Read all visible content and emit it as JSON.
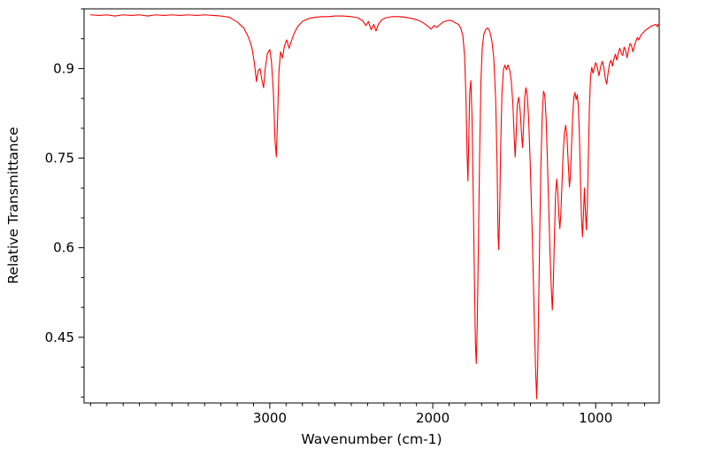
{
  "figure": {
    "background": "#ffffff"
  },
  "chart_data": {
    "type": "line",
    "title": "",
    "xlabel": "Wavenumber (cm-1)",
    "ylabel": "Relative Transmittance",
    "x_axis_reversed": true,
    "xlim": [
      4140,
      610
    ],
    "ylim": [
      0.34,
      1.0
    ],
    "x_ticks": [
      3000,
      2000,
      1000
    ],
    "x_tick_labels": [
      "3000",
      "2000",
      "1000"
    ],
    "x_minor_step": 100,
    "y_ticks": [
      0.45,
      0.6,
      0.75,
      0.9
    ],
    "y_tick_labels": [
      "0.45",
      "0.6",
      "0.75",
      "0.9"
    ],
    "y_minor_step": 0.05,
    "grid": false,
    "legend": null,
    "line_color": "#ff0000",
    "series": [
      {
        "color": "#ff0000",
        "points": [
          [
            4100,
            0.99
          ],
          [
            4050,
            0.989
          ],
          [
            4000,
            0.99
          ],
          [
            3950,
            0.988
          ],
          [
            3900,
            0.99
          ],
          [
            3850,
            0.989
          ],
          [
            3800,
            0.99
          ],
          [
            3750,
            0.988
          ],
          [
            3700,
            0.99
          ],
          [
            3650,
            0.989
          ],
          [
            3600,
            0.99
          ],
          [
            3550,
            0.989
          ],
          [
            3500,
            0.99
          ],
          [
            3450,
            0.989
          ],
          [
            3400,
            0.99
          ],
          [
            3350,
            0.989
          ],
          [
            3300,
            0.988
          ],
          [
            3250,
            0.986
          ],
          [
            3200,
            0.978
          ],
          [
            3160,
            0.968
          ],
          [
            3130,
            0.952
          ],
          [
            3110,
            0.935
          ],
          [
            3095,
            0.91
          ],
          [
            3082,
            0.878
          ],
          [
            3072,
            0.896
          ],
          [
            3060,
            0.9
          ],
          [
            3048,
            0.88
          ],
          [
            3038,
            0.868
          ],
          [
            3028,
            0.9
          ],
          [
            3015,
            0.925
          ],
          [
            3000,
            0.932
          ],
          [
            2990,
            0.912
          ],
          [
            2978,
            0.86
          ],
          [
            2968,
            0.78
          ],
          [
            2960,
            0.752
          ],
          [
            2952,
            0.82
          ],
          [
            2944,
            0.895
          ],
          [
            2934,
            0.928
          ],
          [
            2922,
            0.918
          ],
          [
            2910,
            0.938
          ],
          [
            2896,
            0.948
          ],
          [
            2882,
            0.934
          ],
          [
            2868,
            0.946
          ],
          [
            2852,
            0.958
          ],
          [
            2830,
            0.97
          ],
          [
            2800,
            0.979
          ],
          [
            2760,
            0.984
          ],
          [
            2720,
            0.986
          ],
          [
            2680,
            0.987
          ],
          [
            2640,
            0.987
          ],
          [
            2600,
            0.988
          ],
          [
            2550,
            0.988
          ],
          [
            2500,
            0.987
          ],
          [
            2460,
            0.985
          ],
          [
            2430,
            0.98
          ],
          [
            2410,
            0.972
          ],
          [
            2395,
            0.979
          ],
          [
            2378,
            0.965
          ],
          [
            2362,
            0.974
          ],
          [
            2348,
            0.963
          ],
          [
            2332,
            0.975
          ],
          [
            2315,
            0.981
          ],
          [
            2290,
            0.985
          ],
          [
            2250,
            0.987
          ],
          [
            2210,
            0.987
          ],
          [
            2170,
            0.986
          ],
          [
            2130,
            0.984
          ],
          [
            2090,
            0.981
          ],
          [
            2060,
            0.977
          ],
          [
            2030,
            0.971
          ],
          [
            2010,
            0.966
          ],
          [
            1992,
            0.972
          ],
          [
            1975,
            0.969
          ],
          [
            1955,
            0.974
          ],
          [
            1935,
            0.978
          ],
          [
            1915,
            0.98
          ],
          [
            1895,
            0.981
          ],
          [
            1875,
            0.979
          ],
          [
            1858,
            0.976
          ],
          [
            1842,
            0.974
          ],
          [
            1828,
            0.968
          ],
          [
            1815,
            0.955
          ],
          [
            1804,
            0.92
          ],
          [
            1796,
            0.85
          ],
          [
            1789,
            0.755
          ],
          [
            1784,
            0.712
          ],
          [
            1779,
            0.78
          ],
          [
            1773,
            0.86
          ],
          [
            1766,
            0.88
          ],
          [
            1759,
            0.82
          ],
          [
            1752,
            0.7
          ],
          [
            1745,
            0.56
          ],
          [
            1738,
            0.44
          ],
          [
            1733,
            0.406
          ],
          [
            1727,
            0.47
          ],
          [
            1720,
            0.6
          ],
          [
            1712,
            0.76
          ],
          [
            1704,
            0.88
          ],
          [
            1696,
            0.935
          ],
          [
            1686,
            0.958
          ],
          [
            1674,
            0.966
          ],
          [
            1662,
            0.968
          ],
          [
            1650,
            0.962
          ],
          [
            1638,
            0.948
          ],
          [
            1626,
            0.92
          ],
          [
            1614,
            0.85
          ],
          [
            1605,
            0.74
          ],
          [
            1599,
            0.62
          ],
          [
            1595,
            0.597
          ],
          [
            1590,
            0.65
          ],
          [
            1583,
            0.77
          ],
          [
            1575,
            0.86
          ],
          [
            1566,
            0.898
          ],
          [
            1557,
            0.906
          ],
          [
            1548,
            0.898
          ],
          [
            1538,
            0.906
          ],
          [
            1528,
            0.898
          ],
          [
            1518,
            0.88
          ],
          [
            1508,
            0.84
          ],
          [
            1500,
            0.785
          ],
          [
            1494,
            0.752
          ],
          [
            1488,
            0.79
          ],
          [
            1481,
            0.84
          ],
          [
            1472,
            0.852
          ],
          [
            1463,
            0.828
          ],
          [
            1455,
            0.79
          ],
          [
            1449,
            0.768
          ],
          [
            1443,
            0.8
          ],
          [
            1436,
            0.85
          ],
          [
            1428,
            0.868
          ],
          [
            1420,
            0.855
          ],
          [
            1412,
            0.82
          ],
          [
            1404,
            0.76
          ],
          [
            1396,
            0.69
          ],
          [
            1389,
            0.62
          ],
          [
            1382,
            0.54
          ],
          [
            1375,
            0.46
          ],
          [
            1368,
            0.39
          ],
          [
            1362,
            0.347
          ],
          [
            1356,
            0.4
          ],
          [
            1350,
            0.5
          ],
          [
            1343,
            0.63
          ],
          [
            1336,
            0.74
          ],
          [
            1328,
            0.82
          ],
          [
            1320,
            0.862
          ],
          [
            1312,
            0.855
          ],
          [
            1304,
            0.815
          ],
          [
            1296,
            0.745
          ],
          [
            1288,
            0.665
          ],
          [
            1280,
            0.59
          ],
          [
            1272,
            0.53
          ],
          [
            1266,
            0.496
          ],
          [
            1260,
            0.54
          ],
          [
            1253,
            0.62
          ],
          [
            1246,
            0.69
          ],
          [
            1239,
            0.715
          ],
          [
            1232,
            0.69
          ],
          [
            1226,
            0.655
          ],
          [
            1220,
            0.632
          ],
          [
            1214,
            0.655
          ],
          [
            1207,
            0.705
          ],
          [
            1200,
            0.755
          ],
          [
            1192,
            0.792
          ],
          [
            1184,
            0.805
          ],
          [
            1176,
            0.785
          ],
          [
            1168,
            0.74
          ],
          [
            1161,
            0.702
          ],
          [
            1155,
            0.72
          ],
          [
            1148,
            0.77
          ],
          [
            1141,
            0.82
          ],
          [
            1134,
            0.852
          ],
          [
            1127,
            0.86
          ],
          [
            1120,
            0.848
          ],
          [
            1113,
            0.856
          ],
          [
            1106,
            0.836
          ],
          [
            1099,
            0.78
          ],
          [
            1093,
            0.71
          ],
          [
            1087,
            0.65
          ],
          [
            1081,
            0.618
          ],
          [
            1075,
            0.655
          ],
          [
            1069,
            0.7
          ],
          [
            1063,
            0.66
          ],
          [
            1057,
            0.63
          ],
          [
            1051,
            0.672
          ],
          [
            1045,
            0.75
          ],
          [
            1038,
            0.84
          ],
          [
            1031,
            0.888
          ],
          [
            1024,
            0.902
          ],
          [
            1016,
            0.892
          ],
          [
            1008,
            0.902
          ],
          [
            1000,
            0.91
          ],
          [
            990,
            0.902
          ],
          [
            980,
            0.888
          ],
          [
            970,
            0.902
          ],
          [
            960,
            0.912
          ],
          [
            950,
            0.902
          ],
          [
            940,
            0.882
          ],
          [
            932,
            0.874
          ],
          [
            924,
            0.892
          ],
          [
            915,
            0.908
          ],
          [
            906,
            0.914
          ],
          [
            897,
            0.904
          ],
          [
            888,
            0.916
          ],
          [
            879,
            0.924
          ],
          [
            870,
            0.914
          ],
          [
            861,
            0.926
          ],
          [
            852,
            0.934
          ],
          [
            843,
            0.926
          ],
          [
            834,
            0.922
          ],
          [
            825,
            0.936
          ],
          [
            816,
            0.93
          ],
          [
            807,
            0.918
          ],
          [
            798,
            0.932
          ],
          [
            789,
            0.942
          ],
          [
            780,
            0.938
          ],
          [
            771,
            0.928
          ],
          [
            762,
            0.938
          ],
          [
            753,
            0.946
          ],
          [
            744,
            0.952
          ],
          [
            735,
            0.948
          ],
          [
            726,
            0.954
          ],
          [
            717,
            0.958
          ],
          [
            708,
            0.96
          ],
          [
            699,
            0.963
          ],
          [
            690,
            0.965
          ],
          [
            680,
            0.967
          ],
          [
            670,
            0.969
          ],
          [
            660,
            0.971
          ],
          [
            650,
            0.972
          ],
          [
            640,
            0.973
          ],
          [
            630,
            0.974
          ],
          [
            622,
            0.97
          ],
          [
            616,
            0.974
          ],
          [
            610,
            0.975
          ]
        ]
      }
    ]
  }
}
